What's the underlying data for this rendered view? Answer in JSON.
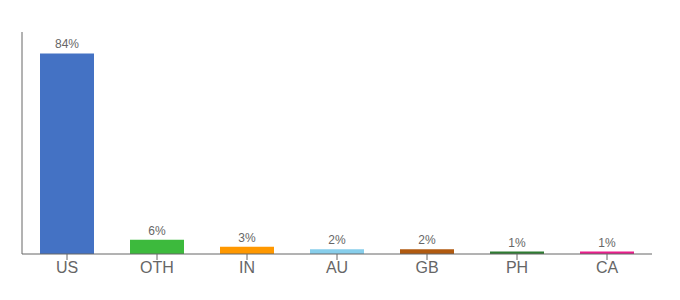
{
  "chart_data": {
    "type": "bar",
    "categories": [
      "US",
      "OTH",
      "IN",
      "AU",
      "GB",
      "PH",
      "CA"
    ],
    "values": [
      84,
      6,
      3,
      2,
      2,
      1,
      1
    ],
    "value_labels": [
      "84%",
      "6%",
      "3%",
      "2%",
      "2%",
      "1%",
      "1%"
    ],
    "colors": [
      "#4472c4",
      "#3dba3d",
      "#ff9800",
      "#87ceeb",
      "#b05a10",
      "#2e7d32",
      "#e91e8c"
    ],
    "ylim": [
      0,
      93
    ],
    "grid": false,
    "data_labels": true,
    "tick_labels": "x"
  }
}
